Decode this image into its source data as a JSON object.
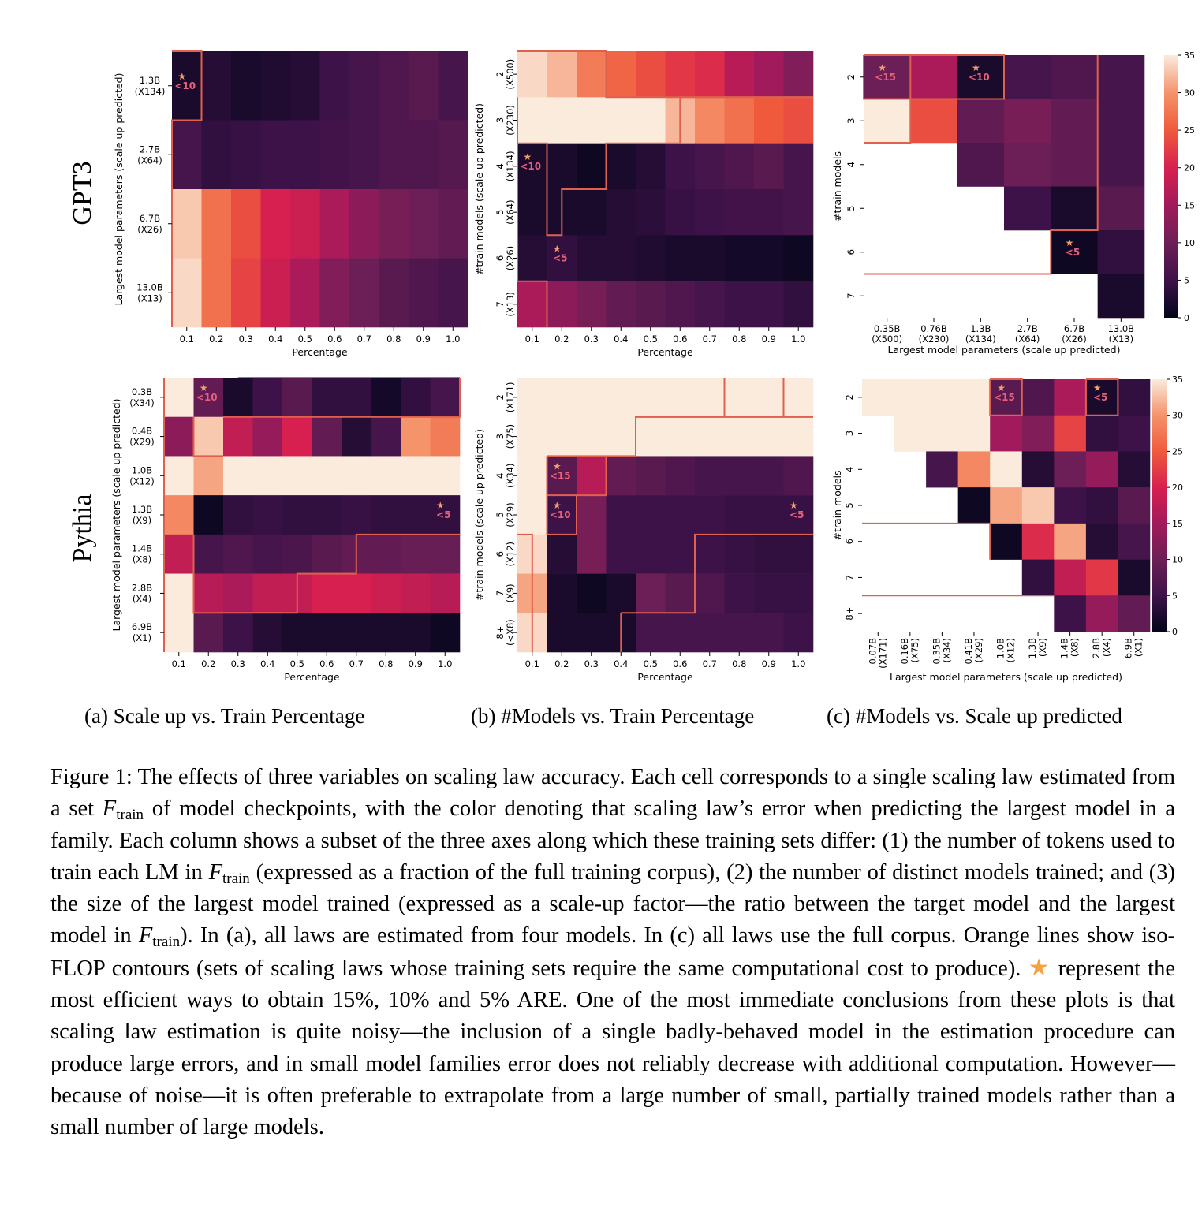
{
  "colorbar": {
    "ticks": [
      "0",
      "5",
      "10",
      "15",
      "20",
      "25",
      "30",
      "35"
    ],
    "max": 35
  },
  "row_labels": [
    "GPT3",
    "Pythia"
  ],
  "subcaptions": {
    "a": "(a) Scale up vs. Train Percentage",
    "b": "(b) #Models vs. Train Percentage",
    "c": "(c) #Models vs. Scale up predicted"
  },
  "caption": {
    "part1": "Figure 1: The effects of three variables on scaling law accuracy. Each cell corresponds to a single scaling law estimated from a set ",
    "F": "F",
    "train_sub": "train",
    "part2": " of model checkpoints, with the color denoting that scaling law’s error when predicting the largest model in a family. Each column shows a subset of the three axes along which these training sets differ: (1) the number of tokens used to train each LM in ",
    "part3": " (expressed as a fraction of the full training corpus), (2) the number of distinct models trained; and (3) the size of the largest model trained (expressed as a scale-up factor—the ratio between the target model and the largest model in ",
    "part4": "). In (a), all laws are estimated from four models. In (c) all laws use the full corpus. Orange lines show iso-FLOP contours (sets of scaling laws whose training sets require the same computational cost to produce). ",
    "star_glyph": "★",
    "part5": " represent the most efficient ways to obtain 15%, 10% and 5% ARE. One of the most immediate conclusions from these plots is that scaling law estimation is quite noisy—the inclusion of a single badly-behaved model in the estimation procedure can produce large errors, and in small model families error does not reliably decrease with additional computation. However—because of noise—it is often preferable to extrapolate from a large number of small, partially trained models rather than a small number of large models."
  },
  "chart_data": [
    {
      "id": "gpt3_a",
      "type": "heatmap",
      "xlabel": "Percentage",
      "ylabel": "Largest model parameters (scale up predicted)",
      "x_ticks": [
        "0.1",
        "0.2",
        "0.3",
        "0.4",
        "0.5",
        "0.6",
        "0.7",
        "0.8",
        "0.9",
        "1.0"
      ],
      "y_ticks": [
        [
          "1.3B",
          "(X134)"
        ],
        [
          "2.7B",
          "(X64)"
        ],
        [
          "6.7B",
          "(X26)"
        ],
        [
          "13.0B",
          "(X13)"
        ]
      ],
      "values": [
        [
          2,
          3,
          2,
          2.5,
          3,
          5,
          6,
          7,
          8,
          6
        ],
        [
          6,
          4,
          4.5,
          5,
          5,
          5.5,
          6,
          7,
          7,
          7.5
        ],
        [
          33,
          27,
          24,
          20,
          19,
          16,
          13,
          11,
          10,
          9
        ],
        [
          34,
          27,
          23,
          19,
          16,
          12,
          10,
          8,
          7,
          6
        ]
      ],
      "stars": [
        {
          "row": 0,
          "col": 0,
          "label": "<10"
        }
      ],
      "contours": [
        [
          [
            0,
            0
          ],
          [
            0.1,
            0
          ],
          [
            0.1,
            1
          ],
          [
            0,
            1
          ],
          [
            0,
            4
          ]
        ]
      ]
    },
    {
      "id": "gpt3_b",
      "type": "heatmap",
      "xlabel": "Percentage",
      "ylabel": "#train models (scale up predicted)",
      "x_ticks": [
        "0.1",
        "0.2",
        "0.3",
        "0.4",
        "0.5",
        "0.6",
        "0.7",
        "0.8",
        "0.9",
        "1.0"
      ],
      "y_ticks": [
        [
          "2",
          "(X500)"
        ],
        [
          "3",
          "(X230)"
        ],
        [
          "4",
          "(X134)"
        ],
        [
          "5",
          "(X64)"
        ],
        [
          "6",
          "(X26)"
        ],
        [
          "7",
          "(X13)"
        ]
      ],
      "values": [
        [
          34,
          32,
          28,
          26,
          24,
          22,
          21,
          17,
          15,
          12
        ],
        [
          35,
          35,
          35,
          35,
          35,
          32,
          29,
          27,
          25,
          24
        ],
        [
          2,
          2,
          1,
          2,
          3,
          5,
          6,
          7,
          8,
          6
        ],
        [
          2,
          2,
          2,
          3,
          3.5,
          4.5,
          5,
          5.5,
          5.5,
          6
        ],
        [
          3,
          4,
          3,
          3,
          2.5,
          2,
          2,
          1.5,
          1.5,
          1
        ],
        [
          16,
          13,
          11,
          9,
          8,
          7,
          6,
          5,
          5,
          4
        ]
      ],
      "stars": [
        {
          "row": 2,
          "col": 0,
          "label": "<10"
        },
        {
          "row": 4,
          "col": 1,
          "label": "<5"
        }
      ],
      "contours": [
        [
          [
            0,
            0
          ],
          [
            0.3,
            0
          ],
          [
            0.3,
            1
          ],
          [
            0.55,
            1
          ],
          [
            0.55,
            1
          ],
          [
            1,
            1
          ]
        ],
        [
          [
            0,
            2
          ],
          [
            0.1,
            2
          ],
          [
            0.1,
            4
          ],
          [
            0.15,
            4
          ],
          [
            0.15,
            3
          ],
          [
            0.3,
            3
          ],
          [
            0.3,
            2
          ],
          [
            0.55,
            2
          ],
          [
            0.55,
            1
          ],
          [
            1,
            1
          ]
        ],
        [
          [
            0,
            1
          ],
          [
            0,
            5
          ],
          [
            0.1,
            5
          ],
          [
            0.1,
            6
          ]
        ]
      ]
    },
    {
      "id": "gpt3_c",
      "type": "heatmap",
      "xlabel": "Largest model parameters (scale up predicted)",
      "ylabel": "#train models",
      "x_ticks": [
        [
          "0.35B",
          "(X500)"
        ],
        [
          "0.76B",
          "(X230)"
        ],
        [
          "1.3B",
          "(X134)"
        ],
        [
          "2.7B",
          "(X64)"
        ],
        [
          "6.7B",
          "(X26)"
        ],
        [
          "13.0B",
          "(X13)"
        ]
      ],
      "y_ticks": [
        [
          "2"
        ],
        [
          "3"
        ],
        [
          "4"
        ],
        [
          "5"
        ],
        [
          "6"
        ],
        [
          "7"
        ]
      ],
      "values": [
        [
          10,
          16,
          2,
          6,
          7,
          6
        ],
        [
          35,
          24,
          9,
          11,
          9,
          6
        ],
        [
          null,
          null,
          7,
          10,
          9,
          6
        ],
        [
          null,
          null,
          null,
          5,
          2,
          8
        ],
        [
          null,
          null,
          null,
          null,
          1,
          4
        ],
        [
          null,
          null,
          null,
          null,
          null,
          2
        ]
      ],
      "stars": [
        {
          "row": 0,
          "col": 0,
          "label": "<15"
        },
        {
          "row": 0,
          "col": 2,
          "label": "<10"
        },
        {
          "row": 4,
          "col": 4,
          "label": "<5"
        }
      ],
      "contours": [
        [
          [
            0,
            0
          ],
          [
            3,
            0
          ],
          [
            3,
            1
          ],
          [
            0,
            1
          ],
          [
            0,
            0
          ]
        ],
        [
          [
            1,
            0
          ],
          [
            1,
            1
          ]
        ],
        [
          [
            0,
            2
          ],
          [
            1,
            2
          ],
          [
            1,
            1
          ]
        ],
        [
          [
            0,
            5
          ],
          [
            4,
            5
          ],
          [
            4,
            4
          ],
          [
            5,
            4
          ],
          [
            5,
            0
          ]
        ]
      ]
    },
    {
      "id": "pythia_a",
      "type": "heatmap",
      "xlabel": "Percentage",
      "ylabel": "Largest model parameters (scale up predicted)",
      "x_ticks": [
        "0.1",
        "0.2",
        "0.3",
        "0.4",
        "0.5",
        "0.6",
        "0.7",
        "0.8",
        "0.9",
        "1.0"
      ],
      "y_ticks": [
        [
          "0.3B",
          "(X34)"
        ],
        [
          "0.4B",
          "(X29)"
        ],
        [
          "1.0B",
          "(X12)"
        ],
        [
          "1.3B",
          "(X9)"
        ],
        [
          "1.4B",
          "(X8)"
        ],
        [
          "2.8B",
          "(X4)"
        ],
        [
          "6.9B",
          "(X1)"
        ]
      ],
      "values": [
        [
          35,
          9,
          2,
          5,
          8,
          4,
          4,
          1.5,
          4,
          6
        ],
        [
          13,
          33,
          18,
          14,
          20,
          9,
          3,
          6,
          30,
          28
        ],
        [
          35,
          31,
          35,
          35,
          35,
          35,
          35,
          35,
          35,
          35
        ],
        [
          29,
          1,
          4,
          4.5,
          4,
          4,
          4.5,
          4,
          4,
          4
        ],
        [
          18,
          6,
          7,
          6,
          6.5,
          8,
          9,
          9,
          9.5,
          9.5
        ],
        [
          35,
          17,
          16,
          18,
          18,
          20,
          20,
          19,
          18,
          17
        ],
        [
          35,
          8,
          5,
          3,
          2,
          2,
          2,
          2,
          2,
          1
        ]
      ],
      "stars": [
        {
          "row": 0,
          "col": 1,
          "label": "<10"
        },
        {
          "row": 3,
          "col": 9,
          "label": "<5"
        }
      ],
      "contours": [
        [
          [
            1,
            0
          ],
          [
            1,
            1
          ],
          [
            0.2,
            1
          ]
        ],
        [
          [
            0.1,
            1
          ],
          [
            0.1,
            2
          ],
          [
            0.2,
            2
          ]
        ],
        [
          [
            1,
            0
          ],
          [
            0.25,
            0
          ]
        ],
        [
          [
            0.1,
            4
          ],
          [
            0.1,
            6
          ],
          [
            0.45,
            6
          ],
          [
            0.45,
            5
          ],
          [
            0.65,
            5
          ],
          [
            0.65,
            4
          ],
          [
            1,
            4
          ]
        ],
        [
          [
            0,
            0
          ],
          [
            0,
            7
          ]
        ]
      ]
    },
    {
      "id": "pythia_b",
      "type": "heatmap",
      "xlabel": "Percentage",
      "ylabel": "#train models (scale up predicted)",
      "x_ticks": [
        "0.1",
        "0.2",
        "0.3",
        "0.4",
        "0.5",
        "0.6",
        "0.7",
        "0.8",
        "0.9",
        "1.0"
      ],
      "y_ticks": [
        [
          "2",
          "(X171)"
        ],
        [
          "3",
          "(X75)"
        ],
        [
          "4",
          "(X34)"
        ],
        [
          "5",
          "(X29)"
        ],
        [
          "6",
          "(X12)"
        ],
        [
          "7",
          "(X9)"
        ],
        [
          "8+",
          "(<X8)"
        ]
      ],
      "values": [
        [
          35,
          35,
          35,
          35,
          35,
          35,
          35,
          35,
          35,
          35
        ],
        [
          35,
          35,
          35,
          35,
          35,
          35,
          35,
          35,
          35,
          35
        ],
        [
          35,
          8,
          17,
          9,
          8,
          7,
          6,
          6,
          6,
          7
        ],
        [
          35,
          5,
          11,
          5,
          5,
          5,
          5,
          4.5,
          4.5,
          4.5
        ],
        [
          34,
          3,
          11,
          5,
          5,
          5,
          5,
          4.5,
          4,
          4
        ],
        [
          31,
          2,
          1,
          2,
          10,
          8,
          7,
          5,
          4.5,
          4.5
        ],
        [
          34,
          2,
          2,
          2,
          6,
          6,
          6,
          6,
          6,
          5
        ]
      ],
      "stars": [
        {
          "row": 2,
          "col": 1,
          "label": "<15"
        },
        {
          "row": 3,
          "col": 1,
          "label": "<10"
        },
        {
          "row": 3,
          "col": 9,
          "label": "<5"
        }
      ],
      "contours": [
        [
          [
            0.7,
            0
          ],
          [
            0.7,
            1
          ]
        ],
        [
          [
            0.9,
            0
          ],
          [
            0.9,
            1
          ]
        ],
        [
          [
            0.4,
            1
          ],
          [
            1,
            1
          ]
        ],
        [
          [
            0.1,
            2
          ],
          [
            0.4,
            2
          ],
          [
            0.4,
            1
          ],
          [
            1,
            1
          ]
        ],
        [
          [
            0.1,
            2
          ],
          [
            0.1,
            3
          ]
        ],
        [
          [
            0.1,
            3
          ],
          [
            0.3,
            3
          ],
          [
            0.3,
            2
          ]
        ],
        [
          [
            0.1,
            3
          ],
          [
            0.1,
            4
          ],
          [
            0.2,
            4
          ],
          [
            0.2,
            3
          ]
        ],
        [
          [
            0,
            4
          ],
          [
            0.05,
            4
          ],
          [
            0.05,
            7
          ]
        ],
        [
          [
            0.35,
            6
          ],
          [
            0.35,
            7
          ]
        ],
        [
          [
            0.35,
            6
          ],
          [
            0.6,
            6
          ],
          [
            0.6,
            4
          ],
          [
            1,
            4
          ]
        ],
        [
          [
            0.6,
            4
          ],
          [
            0.6,
            5
          ]
        ]
      ]
    },
    {
      "id": "pythia_c",
      "type": "heatmap",
      "xlabel": "Largest model parameters (scale up predicted)",
      "ylabel": "#train models",
      "x_ticks": [
        [
          "0.07B",
          "(X171)"
        ],
        [
          "0.16B",
          "(X75)"
        ],
        [
          "0.35B",
          "(X34)"
        ],
        [
          "0.41B",
          "(X29)"
        ],
        [
          "1.0B",
          "(X12)"
        ],
        [
          "1.3B",
          "(X9)"
        ],
        [
          "1.4B",
          "(X8)"
        ],
        [
          "2.8B",
          "(X4)"
        ],
        [
          "6.9B",
          "(X1)"
        ]
      ],
      "y_ticks": [
        [
          "2"
        ],
        [
          "3"
        ],
        [
          "4"
        ],
        [
          "5"
        ],
        [
          "6"
        ],
        [
          "7"
        ],
        [
          "8+"
        ]
      ],
      "values": [
        [
          35,
          35,
          35,
          35,
          8,
          7,
          16,
          2,
          4
        ],
        [
          null,
          35,
          35,
          35,
          15,
          12,
          23,
          4,
          5
        ],
        [
          null,
          null,
          6,
          29,
          35,
          3,
          10,
          14,
          3
        ],
        [
          null,
          null,
          null,
          1,
          31,
          33,
          5,
          4,
          8
        ],
        [
          null,
          null,
          null,
          null,
          1,
          21,
          31,
          3,
          6
        ],
        [
          null,
          null,
          null,
          null,
          null,
          4,
          18,
          22,
          2
        ],
        [
          null,
          null,
          null,
          null,
          null,
          null,
          5,
          14,
          9
        ]
      ],
      "stars": [
        {
          "row": 0,
          "col": 4,
          "label": "<15"
        },
        {
          "row": 0,
          "col": 7,
          "label": "<5"
        }
      ],
      "contours": [
        [
          [
            4,
            0
          ],
          [
            5,
            0
          ],
          [
            5,
            1
          ],
          [
            4,
            1
          ],
          [
            4,
            0
          ]
        ],
        [
          [
            7,
            0
          ],
          [
            8,
            0
          ],
          [
            8,
            1
          ],
          [
            7,
            1
          ],
          [
            7,
            0
          ]
        ],
        [
          [
            0,
            4
          ],
          [
            4,
            4
          ],
          [
            4,
            5
          ]
        ],
        [
          [
            0,
            6
          ],
          [
            6,
            6
          ]
        ]
      ]
    }
  ]
}
